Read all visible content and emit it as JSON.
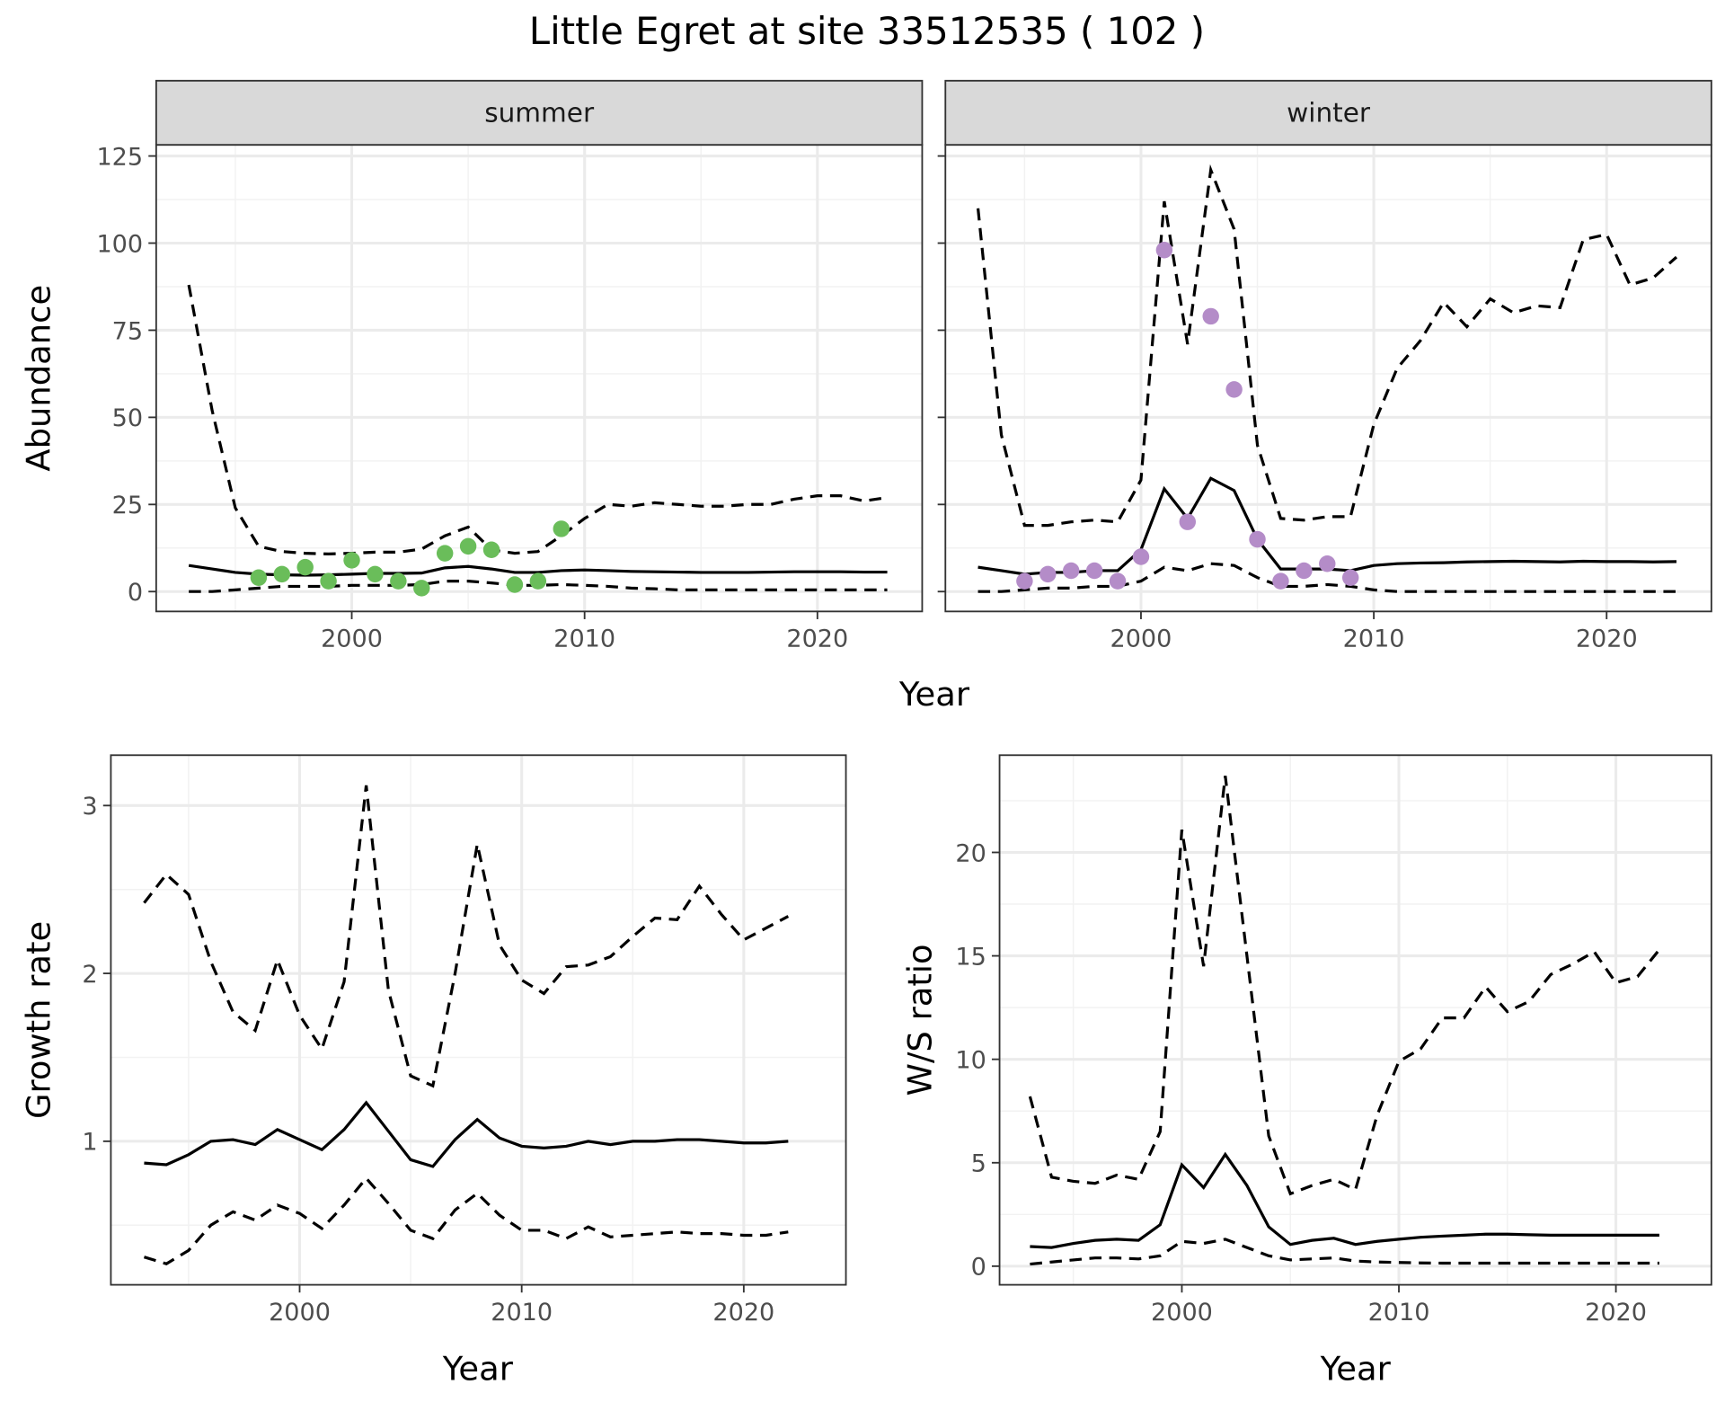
{
  "title": "Little Egret at site 33512535 ( 102 )",
  "chart_data": [
    {
      "type": "line",
      "facet": "summer",
      "xlabel": "Year",
      "ylabel": "Abundance",
      "xlim": [
        1991.6,
        2024.5
      ],
      "ylim": [
        -5.7,
        128.2
      ],
      "xticks": [
        2000,
        2010,
        2020
      ],
      "yticks": [
        0,
        25,
        50,
        75,
        100,
        125
      ],
      "grid": true,
      "x_start": 1993,
      "series": [
        {
          "style": "solid",
          "values": [
            7.5,
            6.5,
            5.5,
            5,
            4.8,
            4.7,
            4.8,
            5,
            5.2,
            5.2,
            5.3,
            6.8,
            7.2,
            6.5,
            5.5,
            5.5,
            6,
            6.2,
            6,
            5.8,
            5.7,
            5.6,
            5.5,
            5.5,
            5.5,
            5.6,
            5.7,
            5.7,
            5.7,
            5.6,
            5.6
          ]
        },
        {
          "style": "dashed",
          "values": [
            88,
            52,
            24,
            13,
            11.5,
            11,
            10.8,
            11,
            11.3,
            11.3,
            12.2,
            16,
            18.5,
            12,
            11,
            11.5,
            16,
            21,
            25,
            24.5,
            25.5,
            25,
            24.5,
            24.5,
            25,
            25,
            26.5,
            27.5,
            27.5,
            26,
            27
          ]
        },
        {
          "style": "dashed",
          "values": [
            0,
            0,
            0.5,
            1,
            1.5,
            1.5,
            1.5,
            1.8,
            1.8,
            1.8,
            2,
            3,
            3,
            2.5,
            1.8,
            1.8,
            2,
            1.8,
            1.5,
            1,
            0.8,
            0.5,
            0.5,
            0.5,
            0.5,
            0.5,
            0.5,
            0.5,
            0.5,
            0.5,
            0.5
          ]
        }
      ],
      "points": {
        "color": "#6abd5a",
        "x": [
          1996,
          1997,
          1998,
          1999,
          2000,
          2001,
          2002,
          2003,
          2004,
          2005,
          2006,
          2007,
          2008,
          2009
        ],
        "y": [
          4,
          5,
          7,
          3,
          9,
          5,
          3,
          1,
          11,
          13,
          12,
          2,
          3,
          18
        ]
      }
    },
    {
      "type": "line",
      "facet": "winter",
      "xlabel": "Year",
      "ylabel": "Abundance",
      "xlim": [
        1991.6,
        2024.5
      ],
      "ylim": [
        -5.7,
        128.2
      ],
      "xticks": [
        2000,
        2010,
        2020
      ],
      "yticks": [
        0,
        25,
        50,
        75,
        100,
        125
      ],
      "grid": true,
      "x_start": 1993,
      "series": [
        {
          "style": "solid",
          "values": [
            7,
            6,
            5,
            5.5,
            5.5,
            6,
            6,
            12,
            29.5,
            21,
            32.5,
            29,
            15,
            6.5,
            6.5,
            6.5,
            6,
            7.5,
            8,
            8.2,
            8.3,
            8.5,
            8.6,
            8.7,
            8.6,
            8.5,
            8.7,
            8.6,
            8.6,
            8.5,
            8.6
          ]
        },
        {
          "style": "dashed",
          "values": [
            110,
            45,
            19,
            19,
            20,
            20.5,
            20,
            32,
            112,
            71,
            121,
            104,
            42,
            21,
            20.5,
            21.5,
            21.5,
            48,
            64,
            72,
            83,
            76,
            84,
            80,
            82,
            81.5,
            101,
            102.5,
            88,
            90,
            96
          ]
        },
        {
          "style": "dashed",
          "values": [
            0,
            0,
            0.5,
            1,
            1,
            1.5,
            1.5,
            3,
            7,
            6,
            8,
            7.5,
            4,
            1.5,
            1.5,
            2,
            1.5,
            0.5,
            0,
            0,
            0,
            0,
            0,
            0,
            0,
            0,
            0,
            0,
            0,
            0,
            0
          ]
        }
      ],
      "points": {
        "color": "#b48cc8",
        "x": [
          1995,
          1996,
          1997,
          1998,
          1999,
          2000,
          2001,
          2002,
          2003,
          2004,
          2005,
          2006,
          2007,
          2008,
          2009
        ],
        "y": [
          3,
          5,
          6,
          6,
          3,
          10,
          98,
          20,
          79,
          58,
          15,
          3,
          6,
          8,
          4
        ]
      }
    },
    {
      "type": "line",
      "xlabel": "Year",
      "ylabel": "Growth rate",
      "xlim": [
        1991.5,
        2024.6
      ],
      "ylim": [
        0.145,
        3.3
      ],
      "xticks": [
        2000,
        2010,
        2020
      ],
      "yticks": [
        1,
        2,
        3
      ],
      "grid": true,
      "x_start": 1993,
      "series": [
        {
          "style": "solid",
          "values": [
            0.87,
            0.86,
            0.92,
            1.0,
            1.01,
            0.98,
            1.07,
            1.01,
            0.95,
            1.07,
            1.23,
            1.06,
            0.89,
            0.85,
            1.01,
            1.13,
            1.02,
            0.97,
            0.96,
            0.97,
            1.0,
            0.98,
            1.0,
            1.0,
            1.01,
            1.01,
            1.0,
            0.99,
            0.99,
            1.0
          ]
        },
        {
          "style": "dashed",
          "values": [
            2.42,
            2.59,
            2.47,
            2.07,
            1.77,
            1.66,
            2.08,
            1.75,
            1.55,
            1.95,
            3.12,
            1.9,
            1.39,
            1.33,
            2.0,
            2.77,
            2.17,
            1.96,
            1.88,
            2.04,
            2.05,
            2.1,
            2.22,
            2.33,
            2.32,
            2.52,
            2.35,
            2.2,
            2.27,
            2.34
          ]
        },
        {
          "style": "dashed",
          "values": [
            0.31,
            0.27,
            0.35,
            0.5,
            0.58,
            0.53,
            0.62,
            0.57,
            0.48,
            0.62,
            0.78,
            0.63,
            0.47,
            0.42,
            0.59,
            0.69,
            0.56,
            0.47,
            0.47,
            0.42,
            0.49,
            0.43,
            0.44,
            0.45,
            0.46,
            0.45,
            0.45,
            0.44,
            0.44,
            0.46
          ]
        }
      ]
    },
    {
      "type": "line",
      "xlabel": "Year",
      "ylabel": "W/S ratio",
      "xlim": [
        1991.6,
        2024.4
      ],
      "ylim": [
        -0.9,
        24.7
      ],
      "xticks": [
        2000,
        2010,
        2020
      ],
      "yticks": [
        0,
        5,
        10,
        15,
        20
      ],
      "grid": true,
      "x_start": 1993,
      "series": [
        {
          "style": "solid",
          "values": [
            0.95,
            0.9,
            1.1,
            1.25,
            1.3,
            1.25,
            2.0,
            4.9,
            3.8,
            5.4,
            3.9,
            1.9,
            1.05,
            1.25,
            1.35,
            1.05,
            1.2,
            1.3,
            1.4,
            1.45,
            1.5,
            1.55,
            1.55,
            1.52,
            1.5,
            1.5,
            1.5,
            1.5,
            1.5,
            1.5
          ]
        },
        {
          "style": "dashed",
          "values": [
            8.2,
            4.3,
            4.1,
            4.0,
            4.4,
            4.2,
            6.5,
            21.1,
            14.5,
            23.7,
            15.0,
            6.3,
            3.5,
            3.9,
            4.2,
            3.7,
            7.3,
            9.9,
            10.5,
            12.0,
            12.0,
            13.5,
            12.3,
            12.8,
            14.1,
            14.6,
            15.2,
            13.7,
            14.0,
            15.3
          ]
        },
        {
          "style": "dashed",
          "values": [
            0.1,
            0.2,
            0.3,
            0.4,
            0.4,
            0.35,
            0.5,
            1.2,
            1.1,
            1.3,
            0.9,
            0.5,
            0.3,
            0.35,
            0.4,
            0.25,
            0.2,
            0.18,
            0.16,
            0.15,
            0.15,
            0.15,
            0.15,
            0.15,
            0.15,
            0.15,
            0.15,
            0.15,
            0.15,
            0.15
          ]
        }
      ]
    }
  ]
}
